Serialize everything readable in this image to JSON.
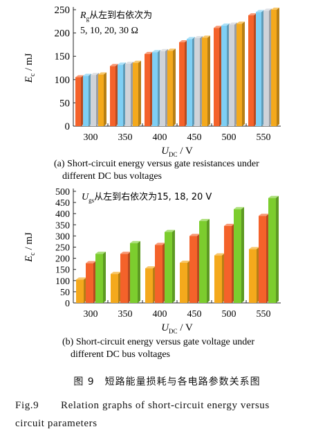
{
  "colors": {
    "orange": "#f4622a",
    "sky": "#7ecff4",
    "amber": "#f4a91c",
    "green": "#7ccd2e"
  },
  "chart_data": [
    {
      "type": "bar",
      "panel_caption_line1": "(a) Short-circuit energy versus gate resistances under",
      "panel_caption_line2": "different DC bus voltages",
      "annotation_line1_symbol": "R",
      "annotation_line1_sub": "g",
      "annotation_line1_text": "从左到右依次为",
      "annotation_line2": "5, 10, 20, 30 Ω",
      "ylabel_var": "E",
      "ylabel_sub": "c",
      "ylabel_unit": " / mJ",
      "xlabel_var": "U",
      "xlabel_sub": "DC",
      "xlabel_unit": " / V",
      "ylim": [
        0,
        250
      ],
      "yticks": [
        "0",
        "50",
        "100",
        "150",
        "200",
        "250"
      ],
      "categories": [
        "300",
        "350",
        "400",
        "450",
        "500",
        "550"
      ],
      "series": [
        {
          "values": [
            105,
            129,
            155,
            180,
            211,
            238
          ],
          "color": "#f4622a"
        },
        {
          "values": [
            108,
            132,
            159,
            187,
            216,
            245
          ],
          "color": "#7ecff4"
        },
        {
          "values": [
            110,
            134,
            161,
            189,
            218,
            248
          ],
          "color": "#cfd3d9"
        },
        {
          "values": [
            111,
            136,
            162,
            190,
            220,
            250
          ],
          "color": "#f4a91c"
        }
      ],
      "grid": false
    },
    {
      "type": "bar",
      "panel_caption_line1": "(b) Short-circuit energy versus gate voltage under",
      "panel_caption_line2": "different DC bus voltages",
      "annotation_line1_symbol": "U",
      "annotation_line1_sub": "gs",
      "annotation_line1_text": "从左到右依次为15, 18, 20 V",
      "ylabel_var": "E",
      "ylabel_sub": "c",
      "ylabel_unit": " / mJ",
      "xlabel_var": "U",
      "xlabel_sub": "DC",
      "xlabel_unit": " / V",
      "ylim": [
        0,
        500
      ],
      "yticks": [
        "0",
        "50",
        "100",
        "150",
        "200",
        "250",
        "300",
        "350",
        "400",
        "450",
        "500"
      ],
      "categories": [
        "300",
        "350",
        "400",
        "450",
        "500",
        "550"
      ],
      "series": [
        {
          "values": [
            105,
            130,
            155,
            180,
            213,
            241
          ],
          "color": "#f4a91c"
        },
        {
          "values": [
            178,
            220,
            260,
            300,
            345,
            390
          ],
          "color": "#f4622a"
        },
        {
          "values": [
            220,
            268,
            318,
            367,
            420,
            470
          ],
          "color": "#7ccd2e"
        }
      ],
      "grid": false
    }
  ],
  "figure_caption_zh": "图 9　短路能量损耗与各电路参数关系图",
  "figure_caption_en_num": "Fig.9",
  "figure_caption_en_line1": "Relation graphs of short-circuit energy versus",
  "figure_caption_en_line2": "circuit parameters"
}
